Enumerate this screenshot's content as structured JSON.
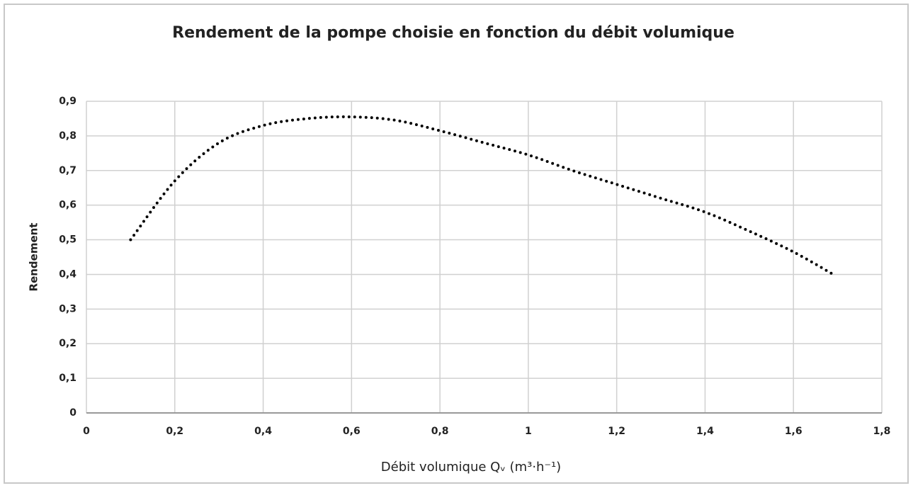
{
  "chart_data": {
    "type": "line",
    "title": "Rendement de la pompe choisie en fonction du débit volumique",
    "x_label": "Débit volumique Qᵥ (m³·h⁻¹)",
    "y_label": "Rendement",
    "x": [
      0.1,
      0.2,
      0.3,
      0.4,
      0.5,
      0.6,
      0.7,
      0.8,
      0.9,
      1.0,
      1.1,
      1.2,
      1.3,
      1.4,
      1.5,
      1.6,
      1.69
    ],
    "series": [
      {
        "name": "Rendement",
        "color": "#000000",
        "values": [
          0.5,
          0.67,
          0.78,
          0.83,
          0.85,
          0.855,
          0.845,
          0.815,
          0.78,
          0.745,
          0.7,
          0.66,
          0.62,
          0.58,
          0.525,
          0.465,
          0.4
        ]
      }
    ],
    "xlim": [
      0,
      1.8
    ],
    "xticks": [
      0,
      {
        "value": 0.2,
        "label": "0,2"
      },
      {
        "value": 0.4,
        "label": "0,4"
      },
      {
        "value": 0.6,
        "label": "0,6"
      },
      {
        "value": 0.8,
        "label": "0,8"
      },
      1,
      {
        "value": 1.2,
        "label": "1,2"
      },
      {
        "value": 1.4,
        "label": "1,4"
      },
      {
        "value": 1.6,
        "label": "1,6"
      },
      {
        "value": 1.8,
        "label": "1,8"
      }
    ],
    "ylim": [
      0,
      0.9
    ],
    "yticks": [
      0,
      {
        "value": 0.1,
        "label": "0,1"
      },
      {
        "value": 0.2,
        "label": "0,2"
      },
      {
        "value": 0.3,
        "label": "0,3"
      },
      {
        "value": 0.4,
        "label": "0,4"
      },
      {
        "value": 0.5,
        "label": "0,5"
      },
      {
        "value": 0.6,
        "label": "0,6"
      },
      {
        "value": 0.7,
        "label": "0,7"
      },
      {
        "value": 0.8,
        "label": "0,8"
      },
      {
        "value": 0.9,
        "label": "0,9"
      }
    ],
    "grid": true
  }
}
